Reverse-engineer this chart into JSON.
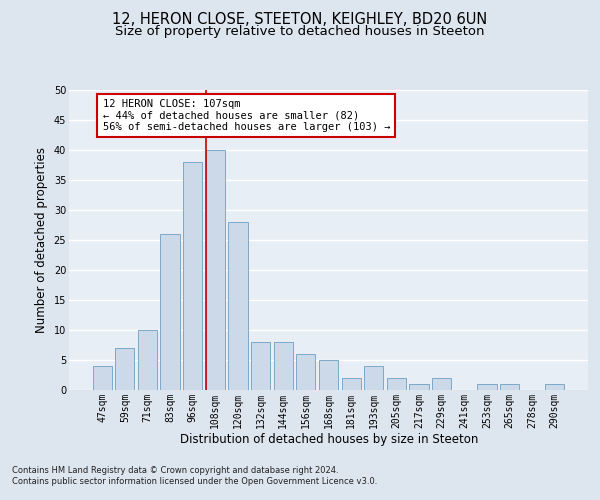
{
  "title1": "12, HERON CLOSE, STEETON, KEIGHLEY, BD20 6UN",
  "title2": "Size of property relative to detached houses in Steeton",
  "xlabel": "Distribution of detached houses by size in Steeton",
  "ylabel": "Number of detached properties",
  "categories": [
    "47sqm",
    "59sqm",
    "71sqm",
    "83sqm",
    "96sqm",
    "108sqm",
    "120sqm",
    "132sqm",
    "144sqm",
    "156sqm",
    "168sqm",
    "181sqm",
    "193sqm",
    "205sqm",
    "217sqm",
    "229sqm",
    "241sqm",
    "253sqm",
    "265sqm",
    "278sqm",
    "290sqm"
  ],
  "values": [
    4,
    7,
    10,
    26,
    38,
    40,
    28,
    8,
    8,
    6,
    5,
    2,
    4,
    2,
    1,
    2,
    0,
    1,
    1,
    0,
    1
  ],
  "bar_color": "#ccd9e8",
  "bar_edge_color": "#7da8c8",
  "property_line_index": 5,
  "annotation_text": "12 HERON CLOSE: 107sqm\n← 44% of detached houses are smaller (82)\n56% of semi-detached houses are larger (103) →",
  "annotation_box_facecolor": "#ffffff",
  "annotation_box_edgecolor": "#cc0000",
  "ylim": [
    0,
    50
  ],
  "yticks": [
    0,
    5,
    10,
    15,
    20,
    25,
    30,
    35,
    40,
    45,
    50
  ],
  "footer1": "Contains HM Land Registry data © Crown copyright and database right 2024.",
  "footer2": "Contains public sector information licensed under the Open Government Licence v3.0.",
  "bg_color": "#dde6ef",
  "plot_bg_color": "#e8eef5",
  "grid_color": "#ffffff",
  "title1_fontsize": 10.5,
  "title2_fontsize": 9.5,
  "tick_fontsize": 7,
  "ylabel_fontsize": 8.5,
  "xlabel_fontsize": 8.5,
  "footer_fontsize": 6.0,
  "annot_fontsize": 7.5
}
